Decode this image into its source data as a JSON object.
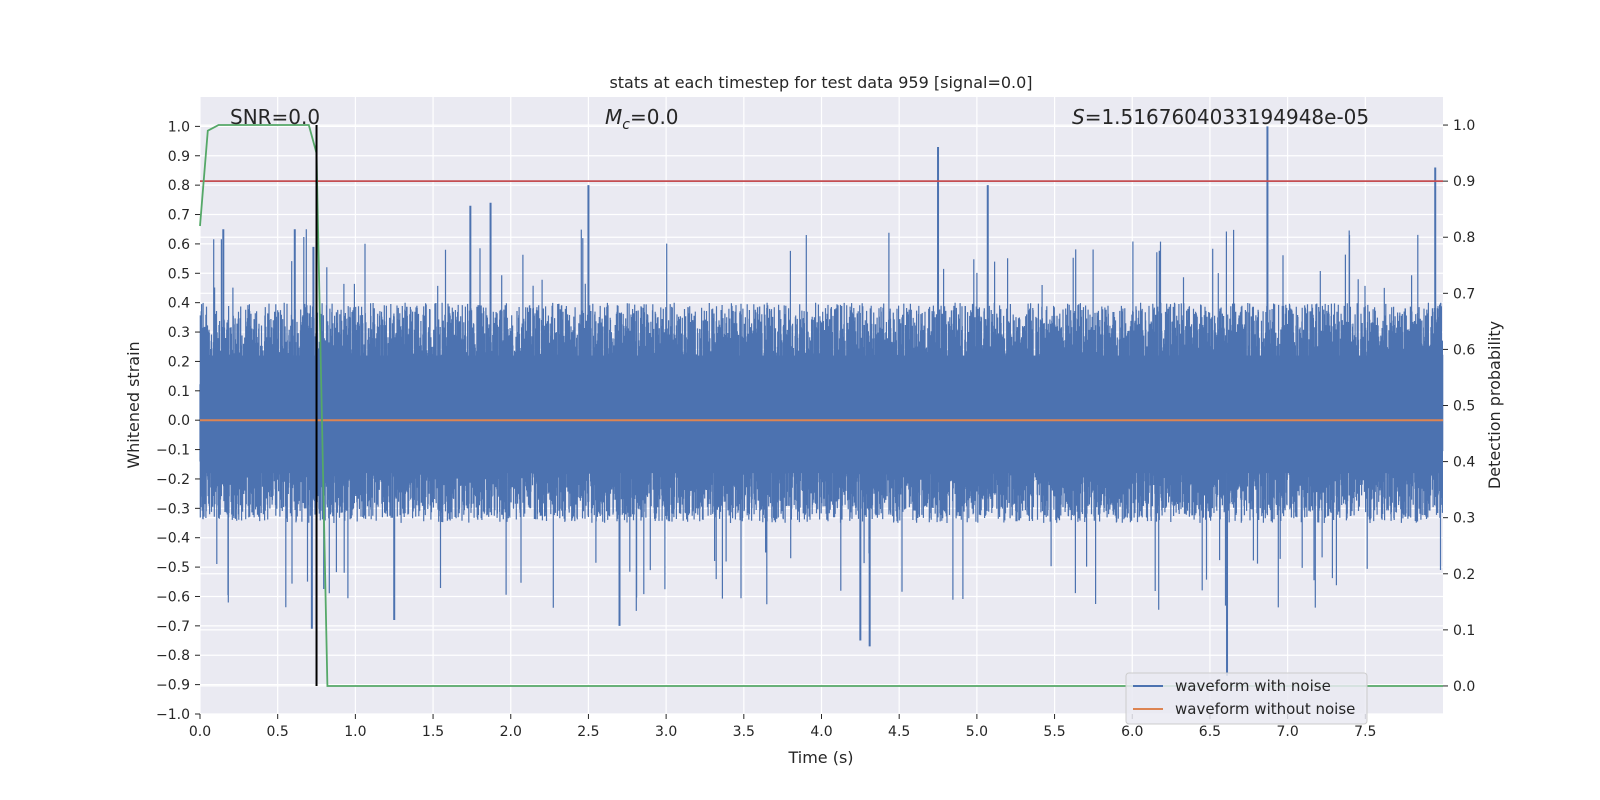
{
  "chart_data": {
    "type": "line",
    "title": "stats at each timestep for test data 959 [signal=0.0]",
    "xlabel": "Time (s)",
    "ylabel": "Whitened strain",
    "y2label": "Detection probability",
    "xlim": [
      0.0,
      8.0
    ],
    "ylim": [
      -1.0,
      1.1
    ],
    "y2lim": [
      -0.05,
      1.05
    ],
    "x_ticks": [
      0.0,
      0.5,
      1.0,
      1.5,
      2.0,
      2.5,
      3.0,
      3.5,
      4.0,
      4.5,
      5.0,
      5.5,
      6.0,
      6.5,
      7.0,
      7.5
    ],
    "x_tick_labels": [
      "0.0",
      "0.5",
      "1.0",
      "1.5",
      "2.0",
      "2.5",
      "3.0",
      "3.5",
      "4.0",
      "4.5",
      "5.0",
      "5.5",
      "6.0",
      "6.5",
      "7.0",
      "7.5"
    ],
    "y_ticks": [
      -1.0,
      -0.9,
      -0.8,
      -0.7,
      -0.6,
      -0.5,
      -0.4,
      -0.3,
      -0.2,
      -0.1,
      0.0,
      0.1,
      0.2,
      0.3,
      0.4,
      0.5,
      0.6,
      0.7,
      0.8,
      0.9,
      1.0
    ],
    "y_tick_labels": [
      "−1.0",
      "−0.9",
      "−0.8",
      "−0.7",
      "−0.6",
      "−0.5",
      "−0.4",
      "−0.3",
      "−0.2",
      "−0.1",
      "0.0",
      "0.1",
      "0.2",
      "0.3",
      "0.4",
      "0.5",
      "0.6",
      "0.7",
      "0.8",
      "0.9",
      "1.0"
    ],
    "y2_ticks": [
      0.0,
      0.1,
      0.2,
      0.3,
      0.4,
      0.5,
      0.6,
      0.7,
      0.8,
      0.9,
      1.0
    ],
    "y2_tick_labels": [
      "0.0",
      "0.1",
      "0.2",
      "0.3",
      "0.4",
      "0.5",
      "0.6",
      "0.7",
      "0.8",
      "0.9",
      "1.0"
    ],
    "grid": true,
    "annotations": {
      "snr": "SNR=0.0",
      "mc_symbol": "M",
      "mc_subscript": "c",
      "mc_value": "=0.0",
      "s_symbol": "S",
      "s_value": "=1.5167604033194948e-05"
    },
    "series": [
      {
        "name": "waveform with noise",
        "color": "#4c72b0",
        "description": "dense noise trace, core band approx -0.35 to 0.4, spikes to approx 1.0 and -0.87",
        "band_low": -0.35,
        "band_high": 0.4,
        "spikes": [
          [
            0.15,
            0.65
          ],
          [
            0.61,
            0.65
          ],
          [
            0.72,
            -0.71
          ],
          [
            0.73,
            0.59
          ],
          [
            1.74,
            0.73
          ],
          [
            1.87,
            0.74
          ],
          [
            2.5,
            0.8
          ],
          [
            4.75,
            0.93
          ],
          [
            4.31,
            -0.77
          ],
          [
            5.07,
            0.8
          ],
          [
            6.61,
            -0.87
          ],
          [
            6.87,
            1.0
          ],
          [
            7.95,
            0.86
          ],
          [
            2.7,
            -0.7
          ],
          [
            1.25,
            -0.68
          ],
          [
            4.25,
            -0.75
          ]
        ]
      },
      {
        "name": "waveform without noise",
        "color": "#dd8452",
        "x": [
          0.0,
          8.0
        ],
        "y": [
          0.0,
          0.0
        ]
      },
      {
        "name": "detection probability",
        "color": "#55a868",
        "axis": "right",
        "x": [
          0.0,
          0.05,
          0.12,
          0.2,
          0.4,
          0.7,
          0.75,
          0.82,
          8.0
        ],
        "y": [
          0.82,
          0.99,
          1.0,
          1.0,
          1.0,
          1.0,
          0.95,
          0.0,
          0.0
        ]
      }
    ],
    "threshold": {
      "value": 0.9,
      "axis": "right",
      "color": "#c44e52"
    },
    "marker_line": {
      "x": 0.75,
      "color": "#000000"
    },
    "legend": {
      "position": "lower-right",
      "entries": [
        {
          "label": "waveform with noise",
          "color": "#4c72b0"
        },
        {
          "label": "waveform without noise",
          "color": "#dd8452"
        }
      ]
    }
  }
}
